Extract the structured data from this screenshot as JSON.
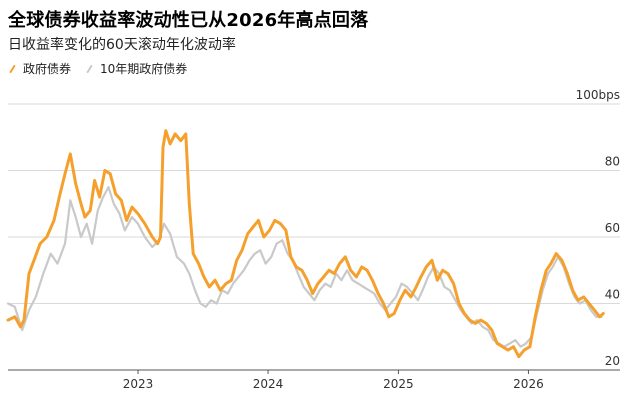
{
  "title": "全球债券收益率波动性已从2026年高点回落",
  "subtitle": "日收益率变化的60天滚动年化波动率",
  "colors": {
    "primary": "#F5A02C",
    "secondary": "#C9C9C9",
    "grid": "#DADADA",
    "axis": "#555555"
  },
  "chart_data": {
    "type": "line",
    "title": "全球债券收益率波动性已从2026年高点回落",
    "subtitle": "日收益率变化的60天滚动年化波动率",
    "ylabel": "bps",
    "ylim": [
      20,
      100
    ],
    "y_ticks": [
      {
        "value": 100,
        "label": "100bps"
      },
      {
        "value": 80,
        "label": "80"
      },
      {
        "value": 60,
        "label": "60"
      },
      {
        "value": 40,
        "label": "40"
      },
      {
        "value": 20,
        "label": "20"
      }
    ],
    "x_range": [
      "2022-01-01",
      "2026-09-15"
    ],
    "x_ticks": [
      {
        "value": "2023-01-01",
        "label": "2023"
      },
      {
        "value": "2024-01-01",
        "label": "2024"
      },
      {
        "value": "2025-01-01",
        "label": "2025"
      },
      {
        "value": "2026-01-01",
        "label": "2026"
      }
    ],
    "grid": true,
    "legend_placement": "top-left",
    "series": [
      {
        "name": "10年期政府债券",
        "color": "#C9C9C9",
        "points": [
          [
            "2022-01-01",
            40
          ],
          [
            "2022-01-20",
            39
          ],
          [
            "2022-02-10",
            32
          ],
          [
            "2022-03-01",
            38
          ],
          [
            "2022-03-20",
            42
          ],
          [
            "2022-04-10",
            49
          ],
          [
            "2022-05-01",
            55
          ],
          [
            "2022-05-20",
            52
          ],
          [
            "2022-06-10",
            58
          ],
          [
            "2022-06-25",
            71
          ],
          [
            "2022-07-10",
            66
          ],
          [
            "2022-07-25",
            60
          ],
          [
            "2022-08-10",
            64
          ],
          [
            "2022-08-25",
            58
          ],
          [
            "2022-09-10",
            68
          ],
          [
            "2022-09-25",
            72
          ],
          [
            "2022-10-10",
            75
          ],
          [
            "2022-10-25",
            70
          ],
          [
            "2022-11-10",
            67
          ],
          [
            "2022-11-25",
            62
          ],
          [
            "2022-12-15",
            66
          ],
          [
            "2023-01-01",
            64
          ],
          [
            "2023-01-20",
            60
          ],
          [
            "2023-02-10",
            57
          ],
          [
            "2023-03-01",
            59
          ],
          [
            "2023-03-15",
            64
          ],
          [
            "2023-04-01",
            61
          ],
          [
            "2023-04-20",
            54
          ],
          [
            "2023-05-10",
            52
          ],
          [
            "2023-05-25",
            49
          ],
          [
            "2023-06-10",
            44
          ],
          [
            "2023-06-25",
            40
          ],
          [
            "2023-07-10",
            39
          ],
          [
            "2023-07-25",
            41
          ],
          [
            "2023-08-10",
            40
          ],
          [
            "2023-08-25",
            44
          ],
          [
            "2023-09-10",
            43
          ],
          [
            "2023-09-25",
            46
          ],
          [
            "2023-10-10",
            48
          ],
          [
            "2023-10-25",
            50
          ],
          [
            "2023-11-10",
            53
          ],
          [
            "2023-11-25",
            55
          ],
          [
            "2023-12-10",
            56
          ],
          [
            "2023-12-25",
            52
          ],
          [
            "2024-01-10",
            54
          ],
          [
            "2024-01-25",
            58
          ],
          [
            "2024-02-10",
            59
          ],
          [
            "2024-02-25",
            55
          ],
          [
            "2024-03-10",
            53
          ],
          [
            "2024-03-25",
            49
          ],
          [
            "2024-04-10",
            45
          ],
          [
            "2024-04-25",
            43
          ],
          [
            "2024-05-10",
            41
          ],
          [
            "2024-05-25",
            44
          ],
          [
            "2024-06-10",
            46
          ],
          [
            "2024-06-25",
            45
          ],
          [
            "2024-07-10",
            49
          ],
          [
            "2024-07-25",
            47
          ],
          [
            "2024-08-10",
            50
          ],
          [
            "2024-08-25",
            47
          ],
          [
            "2024-09-10",
            46
          ],
          [
            "2024-09-25",
            45
          ],
          [
            "2024-10-10",
            44
          ],
          [
            "2024-10-25",
            43
          ],
          [
            "2024-11-10",
            40
          ],
          [
            "2024-11-25",
            38
          ],
          [
            "2024-12-10",
            40
          ],
          [
            "2024-12-25",
            42
          ],
          [
            "2025-01-10",
            46
          ],
          [
            "2025-01-25",
            45
          ],
          [
            "2025-02-10",
            43
          ],
          [
            "2025-02-25",
            41
          ],
          [
            "2025-03-10",
            44
          ],
          [
            "2025-03-25",
            48
          ],
          [
            "2025-04-10",
            51
          ],
          [
            "2025-04-25",
            49
          ],
          [
            "2025-05-10",
            45
          ],
          [
            "2025-05-25",
            44
          ],
          [
            "2025-06-10",
            41
          ],
          [
            "2025-06-25",
            38
          ],
          [
            "2025-07-10",
            36
          ],
          [
            "2025-07-25",
            34
          ],
          [
            "2025-08-10",
            35
          ],
          [
            "2025-08-25",
            33
          ],
          [
            "2025-09-10",
            32
          ],
          [
            "2025-09-25",
            29
          ],
          [
            "2025-10-10",
            28
          ],
          [
            "2025-10-25",
            27
          ],
          [
            "2025-11-10",
            28
          ],
          [
            "2025-11-25",
            29
          ],
          [
            "2025-12-10",
            27
          ],
          [
            "2025-12-25",
            28
          ],
          [
            "2026-01-10",
            30
          ],
          [
            "2026-01-25",
            37
          ],
          [
            "2026-02-10",
            44
          ],
          [
            "2026-02-25",
            49
          ],
          [
            "2026-03-10",
            51
          ],
          [
            "2026-03-25",
            54
          ],
          [
            "2026-04-10",
            51
          ],
          [
            "2026-04-25",
            46
          ],
          [
            "2026-05-10",
            42
          ],
          [
            "2026-05-25",
            40
          ],
          [
            "2026-06-10",
            41
          ],
          [
            "2026-06-25",
            38
          ],
          [
            "2026-07-10",
            36
          ],
          [
            "2026-07-25",
            36
          ]
        ]
      },
      {
        "name": "政府债券",
        "color": "#F5A02C",
        "points": [
          [
            "2022-01-01",
            35
          ],
          [
            "2022-01-20",
            36
          ],
          [
            "2022-02-05",
            33
          ],
          [
            "2022-02-15",
            35
          ],
          [
            "2022-03-01",
            49
          ],
          [
            "2022-03-15",
            53
          ],
          [
            "2022-04-01",
            58
          ],
          [
            "2022-04-20",
            60
          ],
          [
            "2022-05-10",
            65
          ],
          [
            "2022-05-25",
            72
          ],
          [
            "2022-06-10",
            79
          ],
          [
            "2022-06-25",
            85
          ],
          [
            "2022-07-10",
            76
          ],
          [
            "2022-07-25",
            70
          ],
          [
            "2022-08-05",
            66
          ],
          [
            "2022-08-20",
            68
          ],
          [
            "2022-09-01",
            77
          ],
          [
            "2022-09-15",
            72
          ],
          [
            "2022-09-30",
            80
          ],
          [
            "2022-10-15",
            79
          ],
          [
            "2022-10-30",
            73
          ],
          [
            "2022-11-15",
            71
          ],
          [
            "2022-11-30",
            65
          ],
          [
            "2022-12-15",
            69
          ],
          [
            "2023-01-01",
            67
          ],
          [
            "2023-01-20",
            64
          ],
          [
            "2023-02-10",
            60
          ],
          [
            "2023-02-25",
            58
          ],
          [
            "2023-03-05",
            60
          ],
          [
            "2023-03-12",
            87
          ],
          [
            "2023-03-20",
            92
          ],
          [
            "2023-04-01",
            88
          ],
          [
            "2023-04-15",
            91
          ],
          [
            "2023-05-01",
            89
          ],
          [
            "2023-05-15",
            91
          ],
          [
            "2023-05-25",
            70
          ],
          [
            "2023-06-05",
            55
          ],
          [
            "2023-06-20",
            52
          ],
          [
            "2023-07-05",
            48
          ],
          [
            "2023-07-20",
            45
          ],
          [
            "2023-08-05",
            47
          ],
          [
            "2023-08-20",
            44
          ],
          [
            "2023-09-05",
            46
          ],
          [
            "2023-09-20",
            47
          ],
          [
            "2023-10-05",
            53
          ],
          [
            "2023-10-20",
            56
          ],
          [
            "2023-11-05",
            61
          ],
          [
            "2023-11-20",
            63
          ],
          [
            "2023-12-05",
            65
          ],
          [
            "2023-12-20",
            60
          ],
          [
            "2024-01-05",
            62
          ],
          [
            "2024-01-20",
            65
          ],
          [
            "2024-02-05",
            64
          ],
          [
            "2024-02-20",
            62
          ],
          [
            "2024-03-05",
            54
          ],
          [
            "2024-03-20",
            51
          ],
          [
            "2024-04-05",
            50
          ],
          [
            "2024-04-20",
            47
          ],
          [
            "2024-05-05",
            43
          ],
          [
            "2024-05-20",
            46
          ],
          [
            "2024-06-05",
            48
          ],
          [
            "2024-06-20",
            50
          ],
          [
            "2024-07-05",
            49
          ],
          [
            "2024-07-20",
            52
          ],
          [
            "2024-08-05",
            54
          ],
          [
            "2024-08-20",
            50
          ],
          [
            "2024-09-05",
            48
          ],
          [
            "2024-09-20",
            51
          ],
          [
            "2024-10-05",
            50
          ],
          [
            "2024-10-20",
            47
          ],
          [
            "2024-11-05",
            43
          ],
          [
            "2024-11-20",
            40
          ],
          [
            "2024-12-05",
            36
          ],
          [
            "2024-12-20",
            37
          ],
          [
            "2025-01-05",
            41
          ],
          [
            "2025-01-20",
            44
          ],
          [
            "2025-02-05",
            42
          ],
          [
            "2025-02-20",
            45
          ],
          [
            "2025-03-05",
            48
          ],
          [
            "2025-03-20",
            51
          ],
          [
            "2025-04-05",
            53
          ],
          [
            "2025-04-20",
            47
          ],
          [
            "2025-05-05",
            50
          ],
          [
            "2025-05-20",
            49
          ],
          [
            "2025-06-05",
            46
          ],
          [
            "2025-06-20",
            40
          ],
          [
            "2025-07-05",
            37
          ],
          [
            "2025-07-20",
            35
          ],
          [
            "2025-08-05",
            34
          ],
          [
            "2025-08-20",
            35
          ],
          [
            "2025-09-05",
            34
          ],
          [
            "2025-09-20",
            32
          ],
          [
            "2025-10-05",
            28
          ],
          [
            "2025-10-20",
            27
          ],
          [
            "2025-11-05",
            26
          ],
          [
            "2025-11-20",
            27
          ],
          [
            "2025-12-05",
            24
          ],
          [
            "2025-12-20",
            26
          ],
          [
            "2026-01-05",
            27
          ],
          [
            "2026-01-20",
            36
          ],
          [
            "2026-02-05",
            44
          ],
          [
            "2026-02-20",
            50
          ],
          [
            "2026-03-05",
            52
          ],
          [
            "2026-03-20",
            55
          ],
          [
            "2026-04-05",
            53
          ],
          [
            "2026-04-20",
            49
          ],
          [
            "2026-05-05",
            44
          ],
          [
            "2026-05-20",
            41
          ],
          [
            "2026-06-05",
            42
          ],
          [
            "2026-06-20",
            40
          ],
          [
            "2026-07-05",
            38
          ],
          [
            "2026-07-20",
            36
          ],
          [
            "2026-07-30",
            37
          ]
        ]
      }
    ]
  }
}
